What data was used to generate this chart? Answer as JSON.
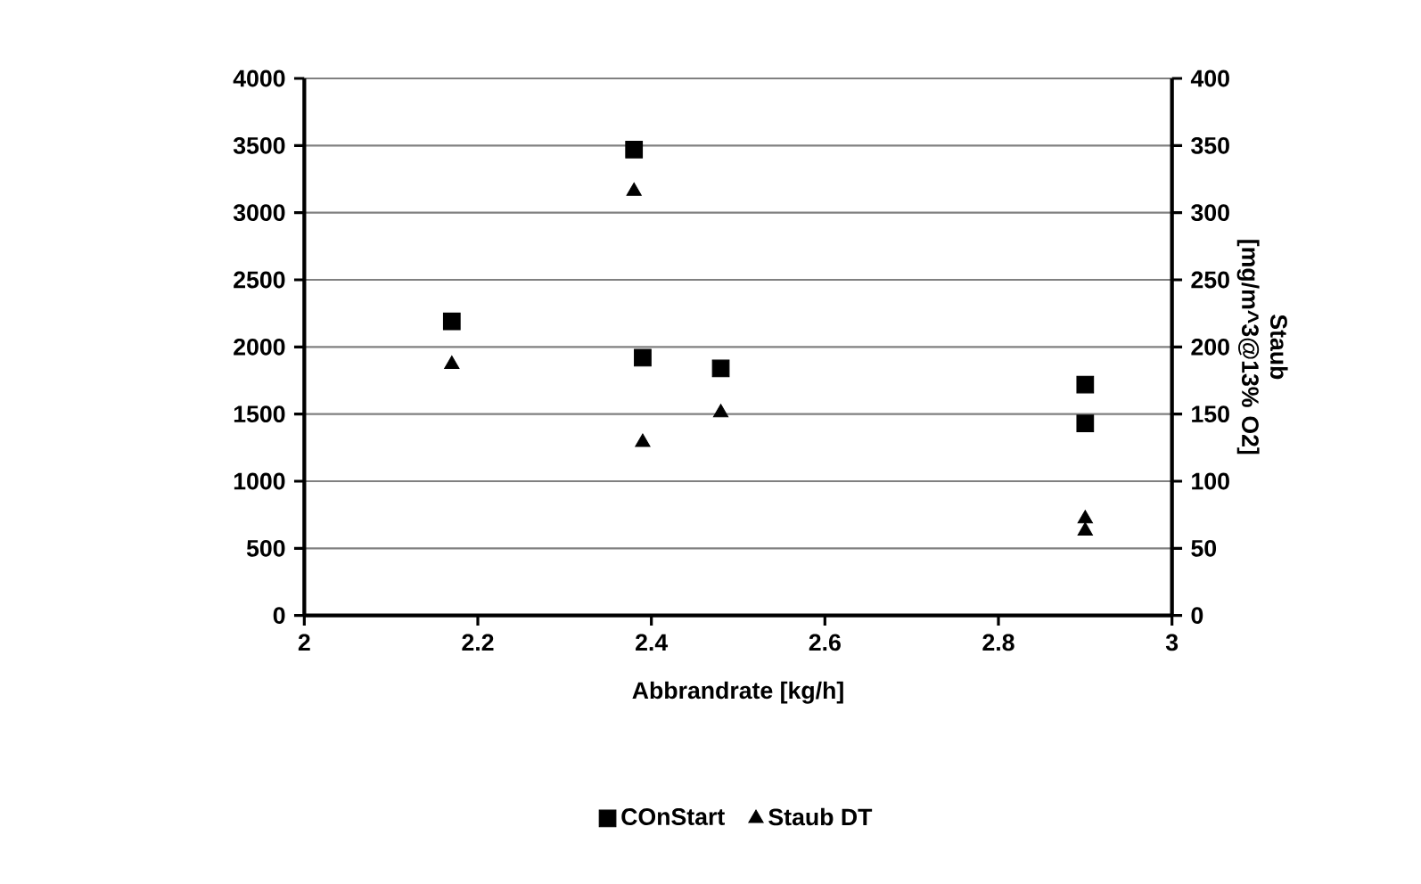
{
  "chart_data": {
    "type": "scatter",
    "xlabel": "Abbrandrate [kg/h]",
    "y2label": "Staub [mg/m^3@13% O2]",
    "xlim": [
      2,
      3
    ],
    "xticks": [
      2,
      2.2,
      2.4,
      2.6,
      2.8,
      3
    ],
    "ylim": [
      0,
      4000
    ],
    "yticks": [
      0,
      500,
      1000,
      1500,
      2000,
      2500,
      3000,
      3500,
      4000
    ],
    "y2lim": [
      0,
      400
    ],
    "y2ticks": [
      0,
      50,
      100,
      150,
      200,
      250,
      300,
      350,
      400
    ],
    "grid": "y",
    "legend": "bottom",
    "series": [
      {
        "name": "COnStart",
        "color": "#000000",
        "marker": "square",
        "x": [
          2.17,
          2.38,
          2.39,
          2.48,
          2.9,
          2.9
        ],
        "values": [
          2190,
          3470,
          1920,
          1840,
          1720,
          1430
        ]
      },
      {
        "name": "Staub DT",
        "color": "#000000",
        "marker": "triangle",
        "axis": "y2",
        "x": [
          2.17,
          2.38,
          2.39,
          2.48,
          2.9,
          2.9
        ],
        "values": [
          187,
          316,
          129,
          151,
          72,
          63
        ]
      }
    ]
  }
}
